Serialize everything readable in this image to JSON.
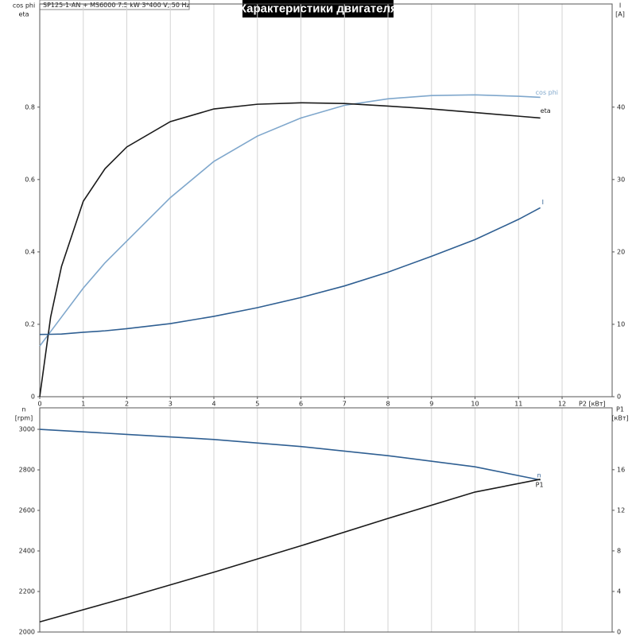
{
  "chart_data": [
    {
      "type": "line",
      "header": "SP125-1-AN + MS6000   7.5 kW   3*400 V, 50 Hz",
      "title": "Характеристики двигателя",
      "xlabel": "P2 [кВт]",
      "ylabel": [
        "cos phi",
        "eta"
      ],
      "y2label": [
        "I",
        "[A]"
      ],
      "x": [
        0,
        0.25,
        0.5,
        1,
        1.5,
        2,
        3,
        4,
        5,
        6,
        7,
        8,
        9,
        10,
        11,
        11.5
      ],
      "xlim": [
        0,
        13.15
      ],
      "xticks": [
        0,
        1,
        2,
        3,
        4,
        5,
        6,
        7,
        8,
        9,
        10,
        11,
        12
      ],
      "ylim": [
        0,
        1.085
      ],
      "yticks": [
        0,
        0.2,
        0.4,
        0.6,
        0.8
      ],
      "y2lim": [
        0,
        54.25
      ],
      "y2ticks": [
        0,
        10,
        20,
        30,
        40
      ],
      "grid": true,
      "series": [
        {
          "name": "cos phi",
          "color": "#7fa7cc",
          "values": [
            0.14,
            0.18,
            0.22,
            0.3,
            0.37,
            0.43,
            0.55,
            0.65,
            0.72,
            0.77,
            0.805,
            0.823,
            0.832,
            0.834,
            0.83,
            0.827
          ]
        },
        {
          "name": "eta",
          "color": "#1a1a1a",
          "values": [
            0,
            0.22,
            0.36,
            0.54,
            0.63,
            0.69,
            0.76,
            0.795,
            0.808,
            0.812,
            0.81,
            0.803,
            0.795,
            0.785,
            0.775,
            0.77
          ]
        },
        {
          "name": "I",
          "color": "#2f5f92",
          "axis": "y2",
          "values": [
            8.6,
            8.62,
            8.65,
            8.9,
            9.1,
            9.4,
            10.1,
            11.1,
            12.3,
            13.7,
            15.3,
            17.2,
            19.4,
            21.7,
            24.5,
            26.1
          ]
        }
      ]
    },
    {
      "type": "line",
      "ylabel": [
        "n",
        "[rpm]"
      ],
      "y2label": [
        "P1",
        "[кВт]"
      ],
      "x": [
        0,
        2,
        4,
        6,
        8,
        10,
        11.5
      ],
      "xlim": [
        0,
        13.15
      ],
      "ylim": [
        2000,
        3106
      ],
      "yticks": [
        2000,
        2200,
        2400,
        2600,
        2800,
        3000
      ],
      "y2lim": [
        0,
        22.1
      ],
      "y2ticks": [
        0,
        4,
        8,
        12,
        16
      ],
      "grid": true,
      "series": [
        {
          "name": "n",
          "color": "#2f5f92",
          "values": [
            3000,
            2975,
            2950,
            2915,
            2870,
            2815,
            2750
          ]
        },
        {
          "name": "P1",
          "color": "#1a1a1a",
          "axis": "y2",
          "values": [
            1.0,
            3.4,
            5.9,
            8.5,
            11.2,
            13.8,
            15.06
          ]
        }
      ]
    }
  ]
}
